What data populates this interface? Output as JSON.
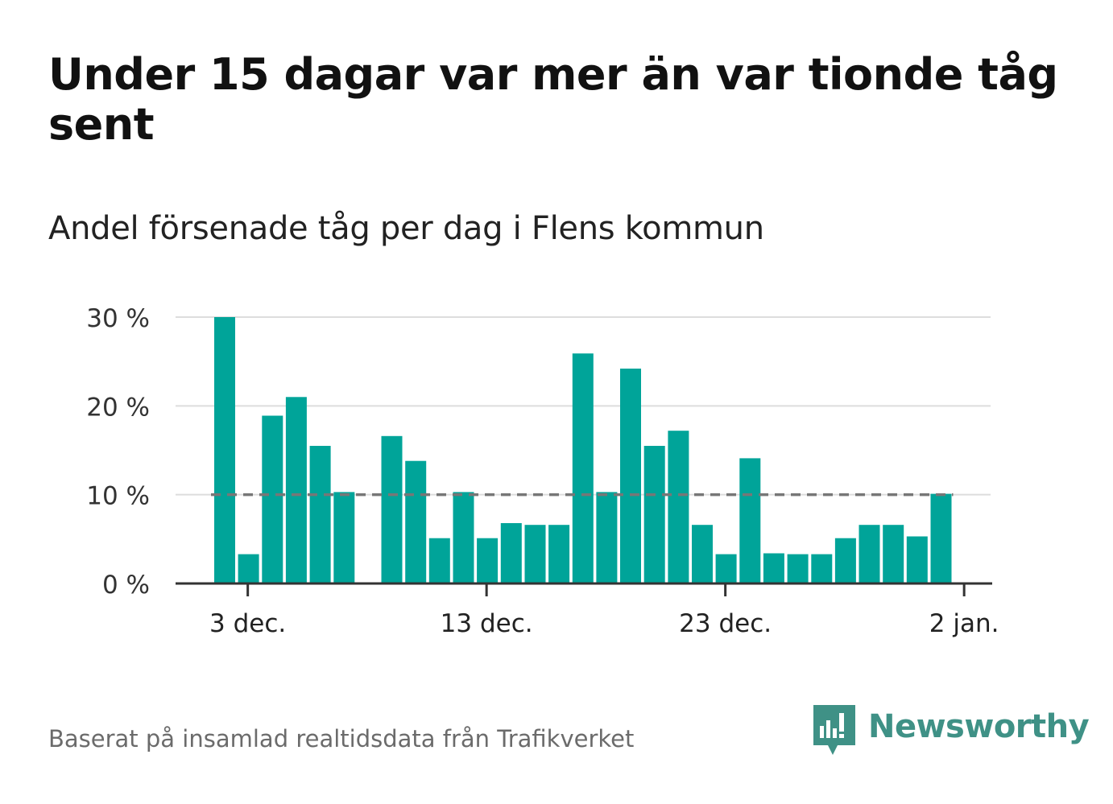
{
  "header": {
    "title": "Under 15 dagar var mer än var tionde tåg sent",
    "subtitle": "Andel försenade tåg per dag i Flens kommun"
  },
  "footer": {
    "source": "Baserat på insamlad realtidsdata från Trafikverket",
    "logo_text": "Newsworthy"
  },
  "colors": {
    "bar": "#00a499",
    "gridline": "#dddddd",
    "baseline": "#333333",
    "reference_line": "#777777",
    "logo": "#3f9186"
  },
  "chart_data": {
    "type": "bar",
    "unit": "%",
    "x": [
      "2 dec.",
      "3 dec.",
      "4 dec.",
      "5 dec.",
      "6 dec.",
      "7 dec.",
      "8 dec.",
      "9 dec.",
      "10 dec.",
      "11 dec.",
      "12 dec.",
      "13 dec.",
      "14 dec.",
      "15 dec.",
      "16 dec.",
      "17 dec.",
      "18 dec.",
      "19 dec.",
      "20 dec.",
      "21 dec.",
      "22 dec.",
      "23 dec.",
      "24 dec.",
      "25 dec.",
      "26 dec.",
      "27 dec.",
      "28 dec.",
      "29 dec.",
      "30 dec.",
      "31 dec.",
      "1 jan."
    ],
    "values": [
      30.0,
      3.3,
      18.9,
      21.0,
      15.5,
      10.3,
      null,
      16.6,
      13.8,
      5.1,
      10.3,
      5.1,
      6.8,
      6.6,
      6.6,
      25.9,
      10.3,
      24.2,
      15.5,
      17.2,
      6.6,
      3.3,
      14.1,
      3.4,
      3.3,
      3.3,
      5.1,
      6.6,
      6.6,
      5.3,
      10.1
    ],
    "x_ticks": [
      "3 dec.",
      "13 dec.",
      "23 dec.",
      "2 jan."
    ],
    "y_ticks": [
      0,
      10,
      20,
      30
    ],
    "y_tick_labels": [
      "0 %",
      "10 %",
      "20 %",
      "30 %"
    ],
    "ylim": [
      0,
      30
    ],
    "reference_line": 10,
    "grid": true,
    "legend": "none"
  }
}
